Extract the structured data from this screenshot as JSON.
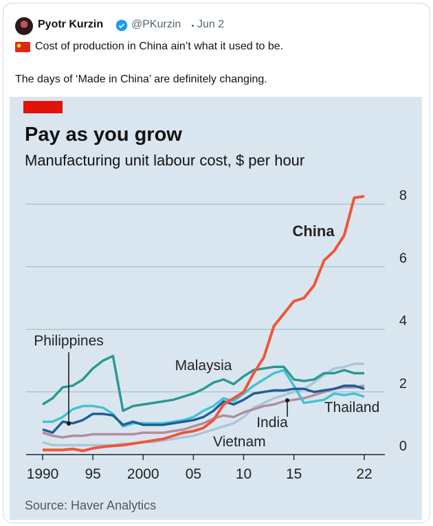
{
  "tweet": {
    "author": "Pyotr Kurzin",
    "handle": "@PKurzin",
    "date": "Jun 2",
    "text_line1": "Cost of production in China ain’t what it used to be.",
    "text_line2": "The days of ‘Made in China’ are definitely changing."
  },
  "chart_data": {
    "type": "line",
    "title": "Pay as you grow",
    "subtitle": "Manufacturing unit labour cost, $ per hour",
    "source": "Source: Haver Analytics",
    "x": [
      1990,
      1991,
      1992,
      1993,
      1994,
      1995,
      1996,
      1997,
      1998,
      1999,
      2000,
      2001,
      2002,
      2003,
      2004,
      2005,
      2006,
      2007,
      2008,
      2009,
      2010,
      2011,
      2012,
      2013,
      2014,
      2015,
      2016,
      2017,
      2018,
      2019,
      2020,
      2021,
      2022
    ],
    "series": [
      {
        "name": "Vietnam",
        "color": "#a9c6db",
        "values": [
          0.4,
          0.3,
          0.3,
          0.3,
          0.3,
          0.3,
          0.3,
          0.3,
          0.35,
          0.35,
          0.4,
          0.4,
          0.45,
          0.5,
          0.55,
          0.6,
          0.7,
          0.8,
          0.9,
          1.0,
          1.2,
          1.5,
          1.65,
          1.8,
          1.9,
          2.0,
          2.1,
          2.3,
          2.55,
          2.75,
          2.8,
          2.9,
          2.9
        ]
      },
      {
        "name": "India",
        "color": "#b38c9c",
        "values": [
          0.7,
          0.6,
          0.55,
          0.6,
          0.6,
          0.65,
          0.65,
          0.65,
          0.65,
          0.65,
          0.7,
          0.7,
          0.7,
          0.75,
          0.8,
          0.9,
          1.0,
          1.15,
          1.25,
          1.2,
          1.35,
          1.45,
          1.55,
          1.6,
          1.7,
          1.75,
          1.8,
          1.9,
          2.0,
          2.1,
          2.15,
          2.15,
          2.2
        ]
      },
      {
        "name": "Thailand",
        "color": "#43c2d6",
        "values": [
          1.05,
          1.05,
          1.2,
          1.45,
          1.55,
          1.55,
          1.5,
          1.3,
          0.9,
          1.0,
          1.0,
          1.0,
          1.0,
          1.05,
          1.1,
          1.2,
          1.4,
          1.55,
          1.8,
          1.7,
          1.95,
          2.2,
          2.4,
          2.6,
          2.7,
          2.2,
          1.65,
          1.7,
          1.75,
          1.95,
          1.9,
          1.95,
          1.85
        ]
      },
      {
        "name": "Philippines",
        "color": "#1f5e98",
        "values": [
          0.8,
          0.7,
          1.05,
          1.0,
          1.1,
          1.3,
          1.3,
          1.25,
          0.95,
          1.05,
          0.95,
          0.95,
          0.95,
          1.0,
          1.05,
          1.1,
          1.2,
          1.4,
          1.7,
          1.6,
          1.75,
          1.95,
          2.0,
          2.05,
          2.05,
          2.1,
          2.1,
          2.0,
          2.05,
          2.1,
          2.2,
          2.2,
          2.1
        ]
      },
      {
        "name": "Malaysia",
        "color": "#2a9893",
        "values": [
          1.6,
          1.8,
          2.15,
          2.2,
          2.4,
          2.75,
          3.0,
          3.15,
          1.4,
          1.55,
          1.6,
          1.65,
          1.7,
          1.75,
          1.85,
          1.95,
          2.1,
          2.3,
          2.4,
          2.25,
          2.5,
          2.7,
          2.75,
          2.8,
          2.8,
          2.4,
          2.35,
          2.4,
          2.6,
          2.6,
          2.7,
          2.6,
          2.6
        ]
      },
      {
        "name": "China",
        "color": "#f0553a",
        "values": [
          0.15,
          0.15,
          0.15,
          0.18,
          0.12,
          0.2,
          0.25,
          0.28,
          0.3,
          0.35,
          0.4,
          0.45,
          0.5,
          0.6,
          0.7,
          0.75,
          0.85,
          1.1,
          1.6,
          1.8,
          2.0,
          2.6,
          3.1,
          4.1,
          4.5,
          4.9,
          5.0,
          5.4,
          6.2,
          6.5,
          7.0,
          8.2,
          8.25
        ]
      }
    ],
    "xlim": [
      1990,
      2022
    ],
    "ylim": [
      0,
      8.4
    ],
    "xticks": [
      1990,
      {
        "value": 1995,
        "label": "95"
      },
      2000,
      {
        "value": 2005,
        "label": "05"
      },
      {
        "value": 2010,
        "label": "10"
      },
      {
        "value": 2015,
        "label": "15"
      },
      {
        "value": 2022,
        "label": "22"
      }
    ],
    "yticks": [
      0,
      2,
      4,
      6,
      8
    ],
    "grid": true
  }
}
